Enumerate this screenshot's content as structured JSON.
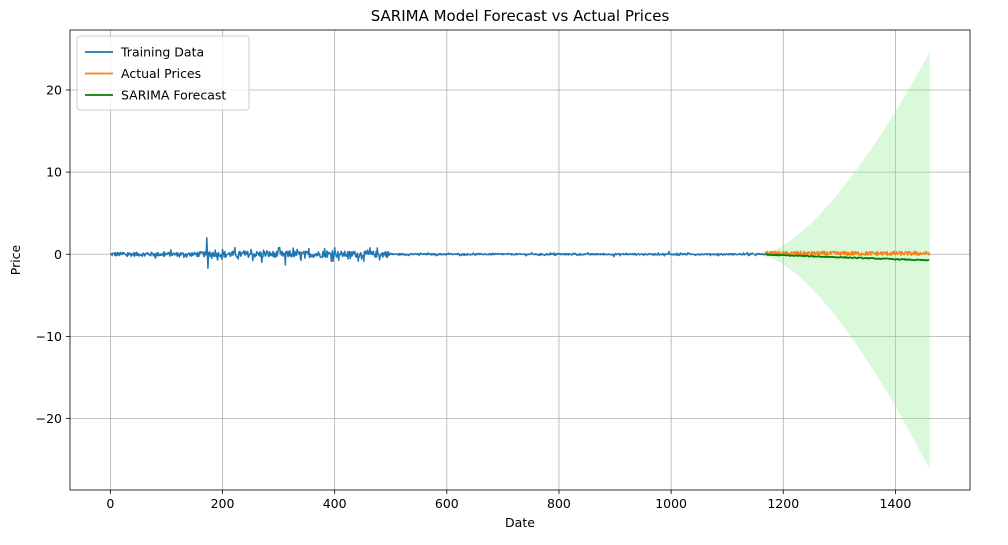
{
  "chart_data": {
    "type": "line",
    "title": "SARIMA Model Forecast vs Actual Prices",
    "xlabel": "Date",
    "ylabel": "Price",
    "xlim": [
      -72,
      1533
    ],
    "ylim": [
      -28.7,
      27.3
    ],
    "xticks": [
      0,
      200,
      400,
      600,
      800,
      1000,
      1200,
      1400
    ],
    "xtick_labels": [
      "0",
      "200",
      "400",
      "600",
      "800",
      "1000",
      "1200",
      "1400"
    ],
    "yticks": [
      -20,
      -10,
      0,
      10,
      20
    ],
    "ytick_labels": [
      "−20",
      "−10",
      "0",
      "10",
      "20"
    ],
    "grid": true,
    "legend_position": "upper left",
    "series": [
      {
        "name": "Training Data",
        "color": "#1f77b4",
        "x_range": [
          0,
          1168
        ],
        "noise_envelope": [
          {
            "x": [
              0,
              150
            ],
            "amplitude": 0.35
          },
          {
            "x": [
              150,
              200
            ],
            "amplitude": 0.45
          },
          {
            "x": [
              200,
              500
            ],
            "amplitude": 0.55
          },
          {
            "x": [
              500,
              1168
            ],
            "amplitude": 0.12
          }
        ],
        "spikes": [
          {
            "x": 172,
            "y": 2.0
          },
          {
            "x": 174,
            "y": -1.7
          },
          {
            "x": 270,
            "y": -1.0
          },
          {
            "x": 300,
            "y": 0.8
          },
          {
            "x": 312,
            "y": -1.3
          },
          {
            "x": 400,
            "y": 0.8
          },
          {
            "x": 996,
            "y": 0.35
          },
          {
            "x": 898,
            "y": -0.3
          }
        ]
      },
      {
        "name": "Actual Prices",
        "color": "#ff7f0e",
        "x_range": [
          1168,
          1461
        ],
        "level": 0.1,
        "noise_amplitude": 0.25
      },
      {
        "name": "SARIMA Forecast",
        "color": "#008000",
        "x_range": [
          1168,
          1461
        ],
        "start_value": -0.05,
        "end_value": -0.75
      }
    ],
    "confidence_band": {
      "color": "#90ee90",
      "opacity": 0.33,
      "x_range": [
        1168,
        1461
      ],
      "lower_start": -0.3,
      "upper_start": 0.2,
      "lower_end": -26.2,
      "upper_end": 24.6
    }
  }
}
